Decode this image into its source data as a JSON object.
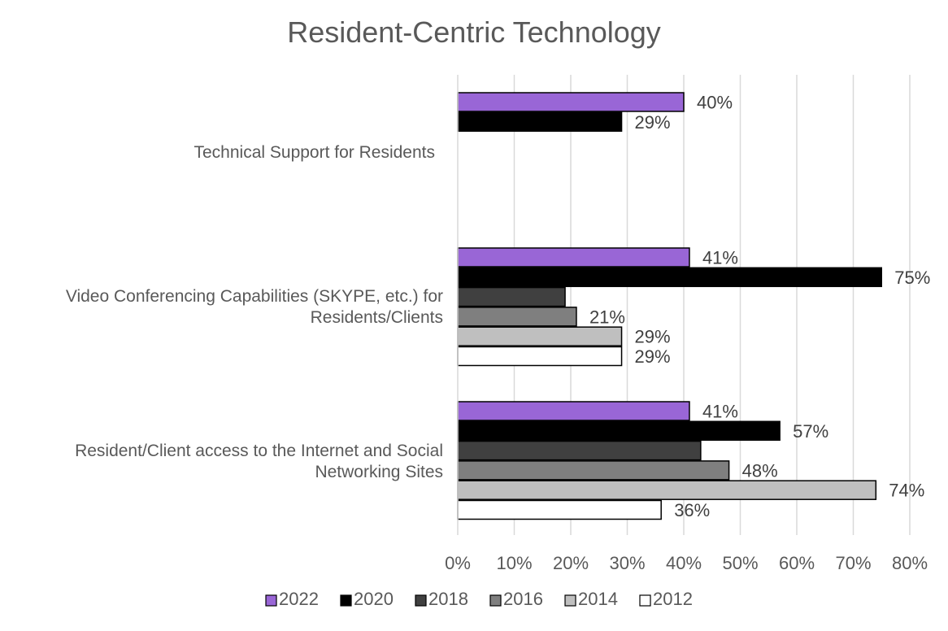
{
  "chart_data": {
    "type": "bar",
    "orientation": "horizontal",
    "title": "Resident-Centric Technology",
    "xlabel": "",
    "ylabel": "",
    "xlim": [
      0,
      80
    ],
    "xticks": [
      0,
      10,
      20,
      30,
      40,
      50,
      60,
      70,
      80
    ],
    "tick_format": "{v}%",
    "grid": true,
    "legend_position": "bottom",
    "categories": [
      "Technical Support for Residents",
      "Video Conferencing Capabilities (SKYPE, etc.) for Residents/Clients",
      "Resident/Client access to the Internet and Social Networking Sites"
    ],
    "category_lines": [
      [
        "Technical Support for Residents"
      ],
      [
        "Video Conferencing Capabilities (SKYPE, etc.) for",
        "Residents/Clients"
      ],
      [
        "Resident/Client access to the Internet and Social",
        "Networking Sites"
      ]
    ],
    "series": [
      {
        "name": "2022",
        "color": "#9966d6",
        "values": [
          40,
          41,
          41
        ],
        "labels": [
          "40%",
          "41%",
          "41%"
        ]
      },
      {
        "name": "2020",
        "color": "#000000",
        "values": [
          29,
          75,
          57
        ],
        "labels": [
          "29%",
          "75%",
          "57%"
        ]
      },
      {
        "name": "2018",
        "color": "#404040",
        "values": [
          null,
          19,
          43
        ],
        "labels": [
          null,
          null,
          null
        ]
      },
      {
        "name": "2016",
        "color": "#7f7f7f",
        "values": [
          null,
          21,
          48
        ],
        "labels": [
          null,
          "21%",
          "48%"
        ]
      },
      {
        "name": "2014",
        "color": "#bfbfbf",
        "values": [
          null,
          29,
          74
        ],
        "labels": [
          null,
          "29%",
          "74%"
        ]
      },
      {
        "name": "2012",
        "color": "#ffffff",
        "values": [
          null,
          29,
          36
        ],
        "labels": [
          null,
          "29%",
          "36%"
        ]
      }
    ]
  }
}
